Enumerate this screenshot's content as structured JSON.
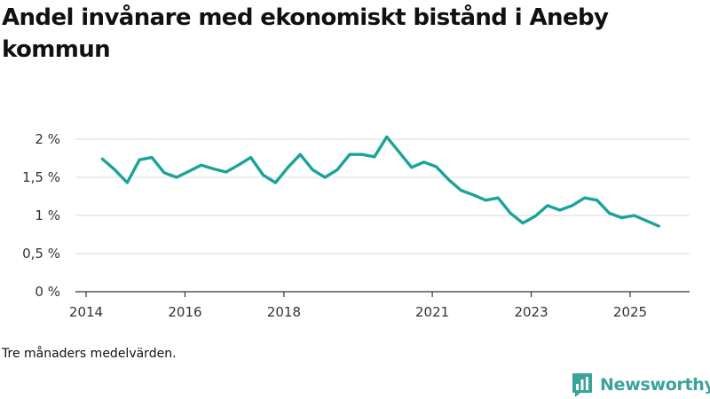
{
  "title": "Andel invånare med ekonomiskt bistånd i Aneby kommun",
  "note": "Tre månaders medelvärden.",
  "brand": {
    "name": "Newsworthy",
    "color": "#3aa39a",
    "icon": "bar-chart-logo-icon"
  },
  "colors": {
    "line": "#1aa39a",
    "grid": "#d9d9d9",
    "axis": "#333333"
  },
  "chart_data": {
    "type": "line",
    "title": "Andel invånare med ekonomiskt bistånd i Aneby kommun",
    "xlabel": "",
    "ylabel": "",
    "grid": true,
    "legend": "none",
    "xlim": [
      2013.9,
      2026.3
    ],
    "ylim": [
      0,
      2.2
    ],
    "y_ticks": [
      {
        "value": 0,
        "label": "0 %"
      },
      {
        "value": 0.5,
        "label": "0,5 %"
      },
      {
        "value": 1,
        "label": "1 %"
      },
      {
        "value": 1.5,
        "label": "1,5 %"
      },
      {
        "value": 2,
        "label": "2 %"
      }
    ],
    "x_ticks": [
      {
        "value": 2014,
        "label": "2014"
      },
      {
        "value": 2016,
        "label": "2016"
      },
      {
        "value": 2018,
        "label": "2018"
      },
      {
        "value": 2021,
        "label": "2021"
      },
      {
        "value": 2023,
        "label": "2023"
      },
      {
        "value": 2025,
        "label": "2025"
      }
    ],
    "series": [
      {
        "name": "Andel invånare med ekonomiskt bistånd",
        "x": [
          2014.33,
          2014.58,
          2014.83,
          2015.08,
          2015.33,
          2015.58,
          2015.83,
          2016.08,
          2016.33,
          2016.58,
          2016.83,
          2017.08,
          2017.33,
          2017.58,
          2017.83,
          2018.08,
          2018.33,
          2018.58,
          2018.83,
          2019.08,
          2019.33,
          2019.58,
          2019.83,
          2020.08,
          2020.33,
          2020.58,
          2020.83,
          2021.08,
          2021.33,
          2021.58,
          2021.83,
          2022.08,
          2022.33,
          2022.58,
          2022.83,
          2023.08,
          2023.33,
          2023.58,
          2023.83,
          2024.08,
          2024.33,
          2024.58,
          2024.83,
          2025.08,
          2025.33,
          2025.58
        ],
        "values": [
          1.74,
          1.6,
          1.43,
          1.73,
          1.76,
          1.56,
          1.5,
          1.58,
          1.66,
          1.61,
          1.57,
          1.66,
          1.76,
          1.53,
          1.43,
          1.63,
          1.8,
          1.6,
          1.5,
          1.6,
          1.8,
          1.8,
          1.77,
          2.03,
          1.83,
          1.63,
          1.7,
          1.64,
          1.47,
          1.33,
          1.27,
          1.2,
          1.23,
          1.03,
          0.9,
          0.99,
          1.13,
          1.07,
          1.13,
          1.23,
          1.2,
          1.03,
          0.97,
          1.0,
          0.93,
          0.86
        ]
      }
    ]
  }
}
